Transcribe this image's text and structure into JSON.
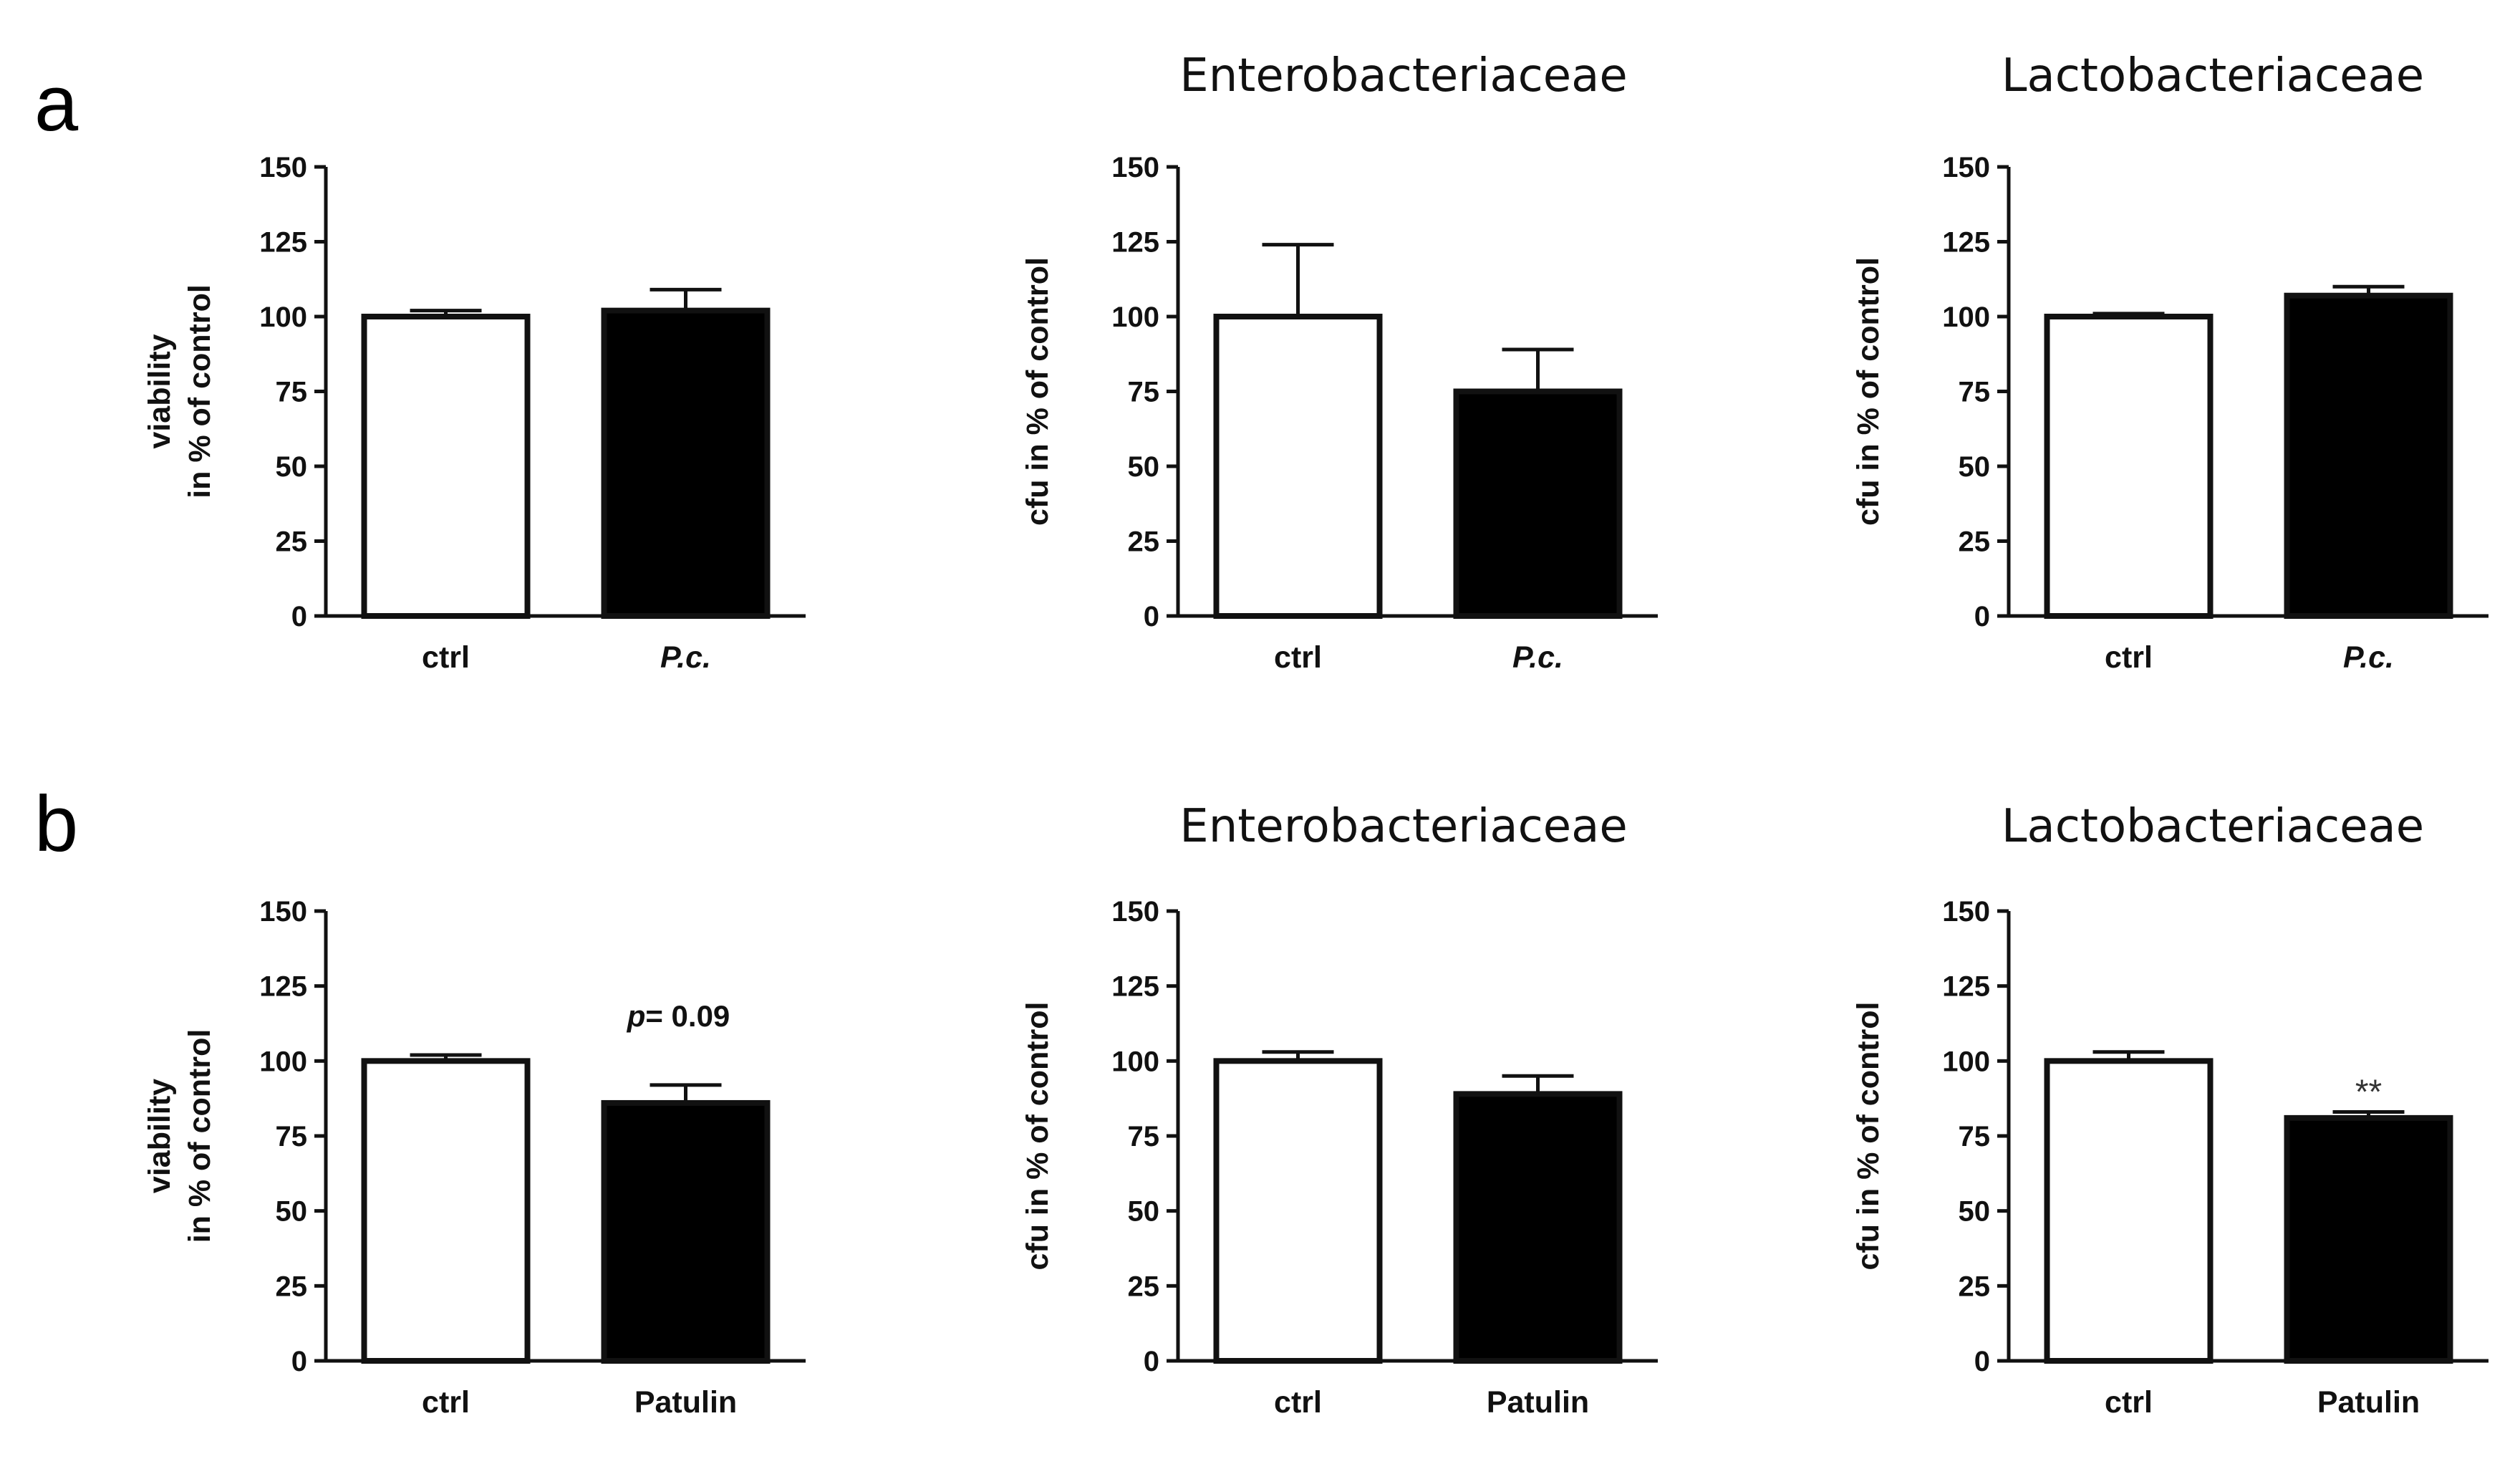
{
  "panel_letters": [
    "a",
    "b"
  ],
  "chart_data": [
    {
      "type": "bar",
      "panel": "a",
      "title": "",
      "ylabel_lines": [
        "viability",
        "in % of control"
      ],
      "categories": [
        "ctrl",
        "P.c."
      ],
      "category_italic": [
        false,
        true
      ],
      "values": [
        100,
        102
      ],
      "errors": [
        2,
        7
      ],
      "ylim": [
        0,
        150
      ],
      "yticks": [
        0,
        25,
        50,
        75,
        100,
        125,
        150
      ],
      "bar_fills": [
        "#ffffff",
        "#000000"
      ],
      "annotation": ""
    },
    {
      "type": "bar",
      "panel": "a",
      "title": "Enterobacteriaceae",
      "ylabel_lines": [
        "cfu in % of control"
      ],
      "categories": [
        "ctrl",
        "P.c."
      ],
      "category_italic": [
        false,
        true
      ],
      "values": [
        100,
        75
      ],
      "errors": [
        24,
        14
      ],
      "ylim": [
        0,
        150
      ],
      "yticks": [
        0,
        25,
        50,
        75,
        100,
        125,
        150
      ],
      "bar_fills": [
        "#ffffff",
        "#000000"
      ],
      "annotation": ""
    },
    {
      "type": "bar",
      "panel": "a",
      "title": "Lactobacteriaceae",
      "ylabel_lines": [
        "cfu in % of control"
      ],
      "categories": [
        "ctrl",
        "P.c."
      ],
      "category_italic": [
        false,
        true
      ],
      "values": [
        100,
        107
      ],
      "errors": [
        1,
        3
      ],
      "ylim": [
        0,
        150
      ],
      "yticks": [
        0,
        25,
        50,
        75,
        100,
        125,
        150
      ],
      "bar_fills": [
        "#ffffff",
        "#000000"
      ],
      "annotation": ""
    },
    {
      "type": "bar",
      "panel": "b",
      "title": "",
      "ylabel_lines": [
        "viability",
        "in % of control"
      ],
      "categories": [
        "ctrl",
        "Patulin"
      ],
      "category_italic": [
        false,
        false
      ],
      "values": [
        100,
        86
      ],
      "errors": [
        2,
        6
      ],
      "ylim": [
        0,
        150
      ],
      "yticks": [
        0,
        25,
        50,
        75,
        100,
        125,
        150
      ],
      "bar_fills": [
        "#ffffff",
        "#000000"
      ],
      "annotation": "= 0.09",
      "annotation_prefix": "p"
    },
    {
      "type": "bar",
      "panel": "b",
      "title": "Enterobacteriaceae",
      "ylabel_lines": [
        "cfu in % of control"
      ],
      "categories": [
        "ctrl",
        "Patulin"
      ],
      "category_italic": [
        false,
        false
      ],
      "values": [
        100,
        89
      ],
      "errors": [
        3,
        6
      ],
      "ylim": [
        0,
        150
      ],
      "yticks": [
        0,
        25,
        50,
        75,
        100,
        125,
        150
      ],
      "bar_fills": [
        "#ffffff",
        "#000000"
      ],
      "annotation": ""
    },
    {
      "type": "bar",
      "panel": "b",
      "title": "Lactobacteriaceae",
      "ylabel_lines": [
        "cfu in % of control"
      ],
      "categories": [
        "ctrl",
        "Patulin"
      ],
      "category_italic": [
        false,
        false
      ],
      "values": [
        100,
        81
      ],
      "errors": [
        3,
        2
      ],
      "ylim": [
        0,
        150
      ],
      "yticks": [
        0,
        25,
        50,
        75,
        100,
        125,
        150
      ],
      "bar_fills": [
        "#ffffff",
        "#000000"
      ],
      "annotation": "**"
    }
  ]
}
